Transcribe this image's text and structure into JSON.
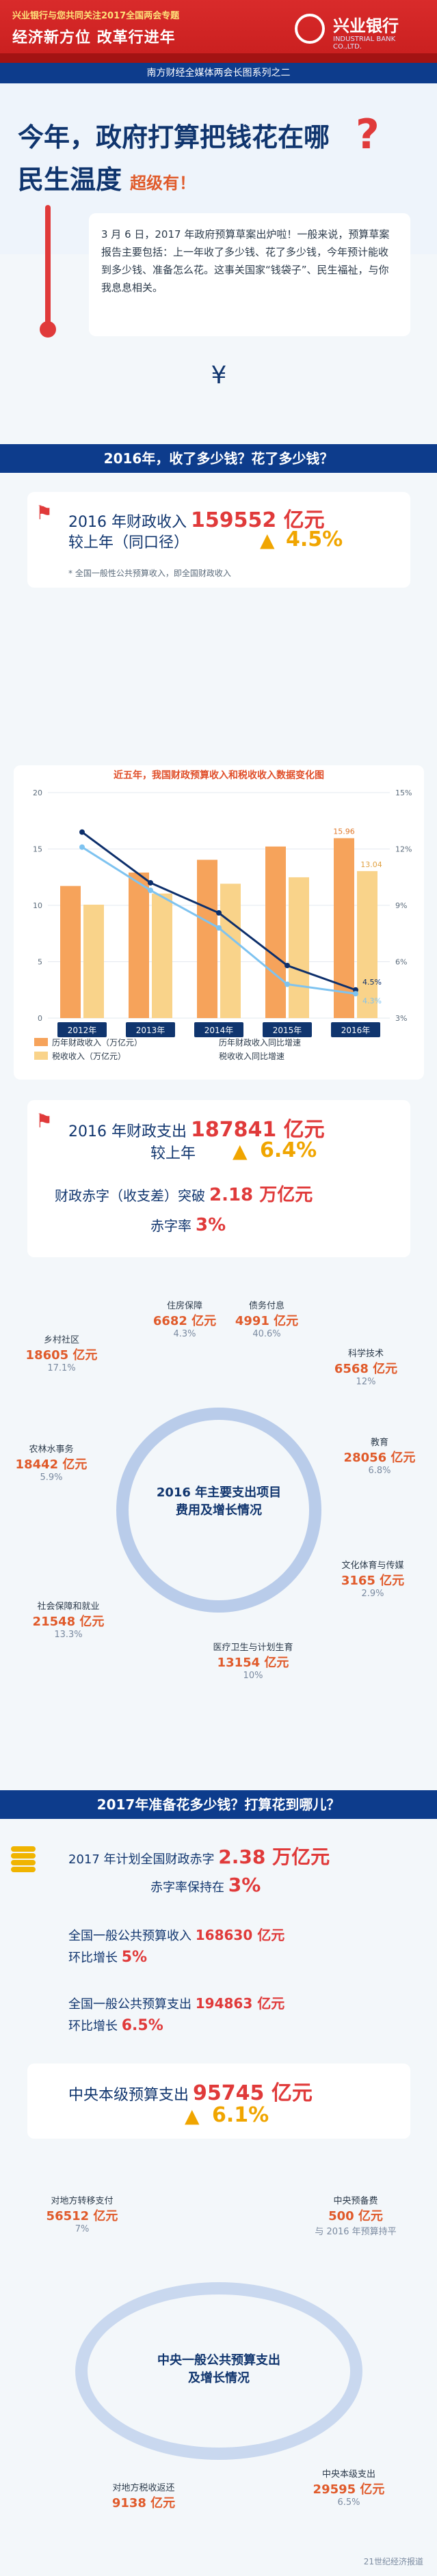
{
  "header": {
    "line1": "兴业银行与您共同关注2017全国两会专题",
    "line2": "经济新方位  改革行进年",
    "logo_cn": "兴业银行",
    "logo_en": "INDUSTRIAL BANK CO.,LTD."
  },
  "subbar": "南方财经全媒体两会长图系列之二",
  "hero": {
    "title1": "今年，政府打算把钱花在哪",
    "title2": "民生温度",
    "title2_suffix": "超级有！"
  },
  "intro": "3 月 6 日，2017 年政府预算草案出炉啦！一般来说，预算草案报告主要包括：上一年收了多少钱、花了多少钱，今年预计能收到多少钱、准备怎么花。这事关国家“钱袋子”、民生福祉，与你我息息相关。",
  "sections": {
    "s1": "2016年，收了多少钱？花了多少钱？",
    "s2": "2017年准备花多少钱？打算花到哪儿？"
  },
  "rev2016": {
    "label": "2016 年财政收入",
    "value": "159552 亿元",
    "compare": "较上年（同口径）",
    "growth": "4.5%",
    "note": "* 全国一般性公共预算收入，即全国财政收入"
  },
  "chart_data": {
    "type": "bar",
    "title": "近五年，我国财政预算收入和税收收入数据变化图",
    "categories": [
      "2012年",
      "2013年",
      "2014年",
      "2015年",
      "2016年"
    ],
    "series": [
      {
        "name": "历年财政收入（万亿元）",
        "values": [
          11.72,
          12.91,
          14.04,
          15.22,
          15.96
        ],
        "color": "#f6a35b"
      },
      {
        "name": "税收收入（万亿元）",
        "values": [
          10.06,
          11.05,
          11.92,
          12.49,
          13.04
        ],
        "color": "#f9d38a"
      },
      {
        "name": "历年财政收入同比增速",
        "values": [
          12.9,
          10.2,
          8.6,
          5.8,
          4.5
        ],
        "color": "#0d2f6b"
      },
      {
        "name": "税收收入同比增速",
        "values": [
          12.1,
          9.8,
          7.8,
          4.8,
          4.3
        ],
        "color": "#7ec3f0"
      }
    ],
    "labels": {
      "rev2016": "15.96",
      "tax2016": "13.04",
      "growth2016": "4.5%",
      "taxgrowth2016": "4.3%"
    },
    "ylim_left": [
      0,
      20
    ],
    "ylim_right": [
      3,
      15
    ],
    "right_ticks": [
      "15%",
      "12%",
      "9%",
      "6%",
      "3%"
    ],
    "left_ticks": [
      "20",
      "15",
      "10",
      "5",
      "0"
    ]
  },
  "exp2016": {
    "label": "2016 年财政支出",
    "value": "187841 亿元",
    "compare": "较上年",
    "growth": "6.4%",
    "deficit_label": "财政赤字（收支差）突破",
    "deficit_value": "2.18 万亿元",
    "rate_label": "赤字率",
    "rate_value": "3%"
  },
  "spend_bubbles": [
    {
      "name": "住房保障",
      "value": "6682 亿元",
      "rate": "4.3%"
    },
    {
      "name": "债务付息",
      "value": "4991 亿元",
      "rate": "40.6%"
    },
    {
      "name": "科学技术",
      "value": "6568 亿元",
      "rate": "12%"
    },
    {
      "name": "乡村社区",
      "value": "18605 亿元",
      "rate": "17.1%"
    },
    {
      "name": "教育",
      "value": "28056 亿元",
      "rate": "6.8%"
    },
    {
      "name": "农林水事务",
      "value": "18442 亿元",
      "rate": "5.9%"
    },
    {
      "name": "文化体育与传媒",
      "value": "3165 亿元",
      "rate": "2.9%"
    },
    {
      "name": "社会保障和就业",
      "value": "21548 亿元",
      "rate": "13.3%"
    },
    {
      "name": "医疗卫生与计划生育",
      "value": "13154 亿元",
      "rate": "10%"
    }
  ],
  "spend_center": "2016 年主要支出项目\n费用及增长情况",
  "plan2017": {
    "deficit_label": "2017 年计划全国财政赤字",
    "deficit_value": "2.38 万亿元",
    "rate_label": "赤字率保持在",
    "rate_value": "3%",
    "rev_label": "全国一般公共预算收入",
    "rev_value": "168630 亿元",
    "rev_growth_label": "环比增长",
    "rev_growth": "5%",
    "exp_label": "全国一般公共预算支出",
    "exp_value": "194863 亿元",
    "exp_growth_label": "环比增长",
    "exp_growth": "6.5%",
    "central_label": "中央本级预算支出",
    "central_value": "95745 亿元",
    "central_growth": "6.1%"
  },
  "central_items": [
    {
      "name": "对地方转移支付",
      "value": "56512 亿元",
      "rate": "7%"
    },
    {
      "name": "中央预备费",
      "value": "500 亿元",
      "rate": "与 2016 年预算持平"
    },
    {
      "name": "对地方税收返还",
      "value": "9138 亿元",
      "rate": ""
    },
    {
      "name": "中央本级支出",
      "value": "29595 亿元",
      "rate": "6.5%"
    }
  ],
  "central_center": "中央一般公共预算支出\n及增长情况",
  "watermark": "21世纪经济报道"
}
